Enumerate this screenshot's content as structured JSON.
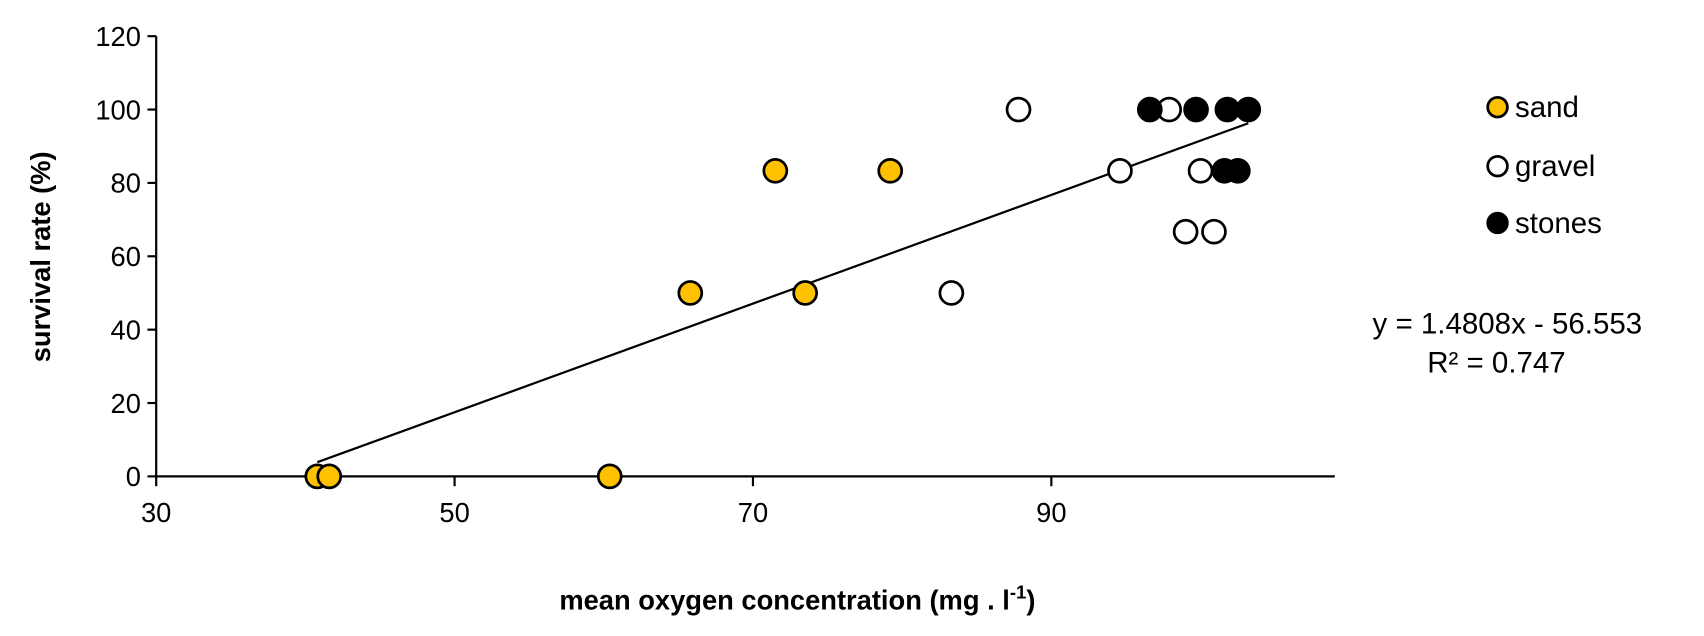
{
  "chart_data": {
    "type": "scatter",
    "title": "",
    "xlabel": "mean oxygen concentration (mg . l",
    "xlabel_sup": "-1",
    "xlabel_end": ")",
    "ylabel": "survival rate (%)",
    "xlim": [
      30,
      109
    ],
    "ylim": [
      0,
      120
    ],
    "xticks": [
      30,
      50,
      70,
      90
    ],
    "yticks": [
      0,
      20,
      40,
      60,
      80,
      100,
      120
    ],
    "grid": false,
    "legend_position": "right",
    "colors": {
      "sand": "#FFC000",
      "gravel": "#FFFFFF",
      "stones": "#000000",
      "edge": "#000000"
    },
    "series": [
      {
        "name": "sand",
        "points": [
          [
            40.8,
            0
          ],
          [
            41.6,
            0
          ],
          [
            60.4,
            0
          ],
          [
            65.8,
            50
          ],
          [
            71.5,
            83.3
          ],
          [
            73.5,
            50
          ],
          [
            79.2,
            83.3
          ]
        ]
      },
      {
        "name": "gravel",
        "points": [
          [
            83.3,
            50
          ],
          [
            87.8,
            100
          ],
          [
            94.6,
            83.3
          ],
          [
            97.9,
            100
          ],
          [
            99.0,
            66.7
          ],
          [
            100.0,
            83.3
          ],
          [
            100.9,
            66.7
          ]
        ]
      },
      {
        "name": "stones",
        "points": [
          [
            96.6,
            100
          ],
          [
            99.7,
            100
          ],
          [
            101.6,
            83.3
          ],
          [
            101.8,
            100
          ],
          [
            102.5,
            83.3
          ],
          [
            103.2,
            100
          ]
        ]
      }
    ],
    "trendline": {
      "slope": 1.4808,
      "intercept": -56.553,
      "x_range": [
        40.8,
        103.2
      ]
    },
    "annotations": {
      "equation": "y = 1.4808x - 56.553",
      "r2": "R² = 0.747"
    }
  }
}
